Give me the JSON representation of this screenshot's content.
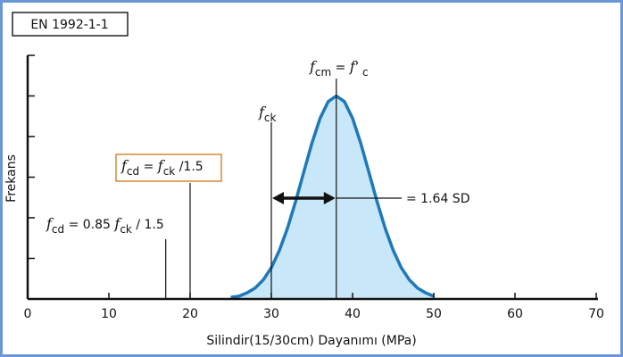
{
  "badge": "EN 1992-1-1",
  "chart_data": {
    "type": "area",
    "x_label": "Silindir(15/30cm) Dayanımı (MPa)",
    "y_label": "Frekans",
    "x": [
      25,
      26,
      27,
      28,
      29,
      30,
      31,
      32,
      33,
      34,
      35,
      36,
      37,
      38,
      39,
      40,
      41,
      42,
      43,
      44,
      45,
      46,
      47,
      48,
      49,
      50
    ],
    "values": [
      0.04,
      0.07,
      0.15,
      0.27,
      0.47,
      0.77,
      1.2,
      1.75,
      2.41,
      3.13,
      3.84,
      4.45,
      4.86,
      5,
      4.86,
      4.45,
      3.84,
      3.13,
      2.41,
      1.75,
      1.2,
      0.77,
      0.47,
      0.27,
      0.15,
      0.07
    ],
    "color": "#1f78b8",
    "fill": "#c8e7f8",
    "xlim": [
      0,
      70
    ],
    "xticks": [
      0,
      10,
      20,
      30,
      40,
      50,
      60,
      70
    ],
    "ylim": [
      0,
      6
    ],
    "yticks": [
      1,
      2,
      3,
      4,
      5,
      6
    ],
    "markers": [
      {
        "x": 38,
        "label": [
          {
            "text": "f",
            "italic": true
          },
          {
            "text": "cm",
            "sub": true
          },
          {
            "text": " = "
          },
          {
            "text": "f",
            "italic": true
          },
          {
            "text": "’"
          },
          {
            "text": " c",
            "sub": true
          }
        ]
      },
      {
        "x": 30,
        "label": [
          {
            "text": "f",
            "italic": true
          },
          {
            "text": "ck",
            "sub": true
          }
        ]
      },
      {
        "x": 20,
        "label": [
          {
            "text": "f",
            "italic": true
          },
          {
            "text": "cd",
            "sub": true
          },
          {
            "text": " = "
          },
          {
            "text": "f",
            "italic": true
          },
          {
            "text": "ck",
            "sub": true
          },
          {
            "text": " /1.5"
          }
        ],
        "box_color": "#d4883a"
      },
      {
        "x": 17,
        "label": [
          {
            "text": "f",
            "italic": true
          },
          {
            "text": "cd",
            "sub": true
          },
          {
            "text": " = 0.85 "
          },
          {
            "text": "f",
            "italic": true
          },
          {
            "text": "ck",
            "sub": true
          },
          {
            "text": " / 1.5"
          }
        ]
      }
    ],
    "spread_label": "= 1.64 SD"
  }
}
